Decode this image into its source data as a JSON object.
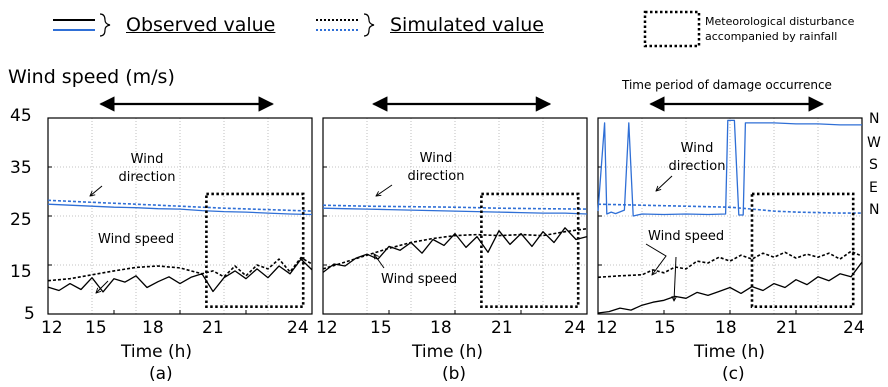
{
  "legend": {
    "observed_label": "Observed value",
    "simulated_label": "Simulated value",
    "disturbance_label_line1": "Meteorological disturbance",
    "disturbance_label_line2": "accompanied by rainfall"
  },
  "y_axis_label": "Wind speed (m/s)",
  "right_axis_labels": [
    "N",
    "W",
    "S",
    "E",
    "N"
  ],
  "colors": {
    "speed": "#000000",
    "direction": "#2f6fd6",
    "grid": "#b0b0b0"
  },
  "chart_data": [
    {
      "type": "line",
      "panel_label": "(a)",
      "xlabel": "Time (h)",
      "ylabel": "Wind speed (m/s)",
      "xlim": [
        12,
        24
      ],
      "ylim": [
        5,
        45
      ],
      "x_ticks": [
        12,
        15,
        18,
        21,
        24
      ],
      "y_ticks": [
        5,
        15,
        25,
        35,
        45
      ],
      "grid": true,
      "annotations": [
        "Wind direction",
        "Wind speed"
      ],
      "damage_period": [
        14.4,
        22.2
      ],
      "disturbance_box": {
        "x": [
          19.2,
          23.6
        ],
        "y": [
          6.5,
          29.5
        ]
      },
      "series": [
        {
          "role": "speed",
          "kind": "observed",
          "x": [
            12,
            12.5,
            13,
            13.5,
            14,
            14.5,
            15,
            15.5,
            16,
            16.5,
            17,
            17.5,
            18,
            18.5,
            19,
            19.5,
            20,
            20.5,
            21,
            21.5,
            22,
            22.5,
            23,
            23.5,
            24
          ],
          "y": [
            10.5,
            9.8,
            11.2,
            10,
            12.4,
            9.5,
            12.2,
            11.5,
            12.8,
            10.4,
            11.6,
            12.6,
            11.2,
            12.5,
            13.2,
            9.6,
            12.4,
            13.8,
            12.2,
            14.2,
            12.4,
            14.8,
            13.2,
            16.2,
            14
          ]
        },
        {
          "role": "speed",
          "kind": "simulated",
          "x": [
            12,
            13,
            14,
            15,
            16,
            17,
            18,
            19,
            19.5,
            20,
            20.5,
            21,
            21.5,
            22,
            22.5,
            23,
            23.5,
            24
          ],
          "y": [
            11.8,
            12.2,
            13,
            13.8,
            14.5,
            14.8,
            14.4,
            13.2,
            13.8,
            12.6,
            14.8,
            12.8,
            15,
            14.2,
            16.2,
            13.6,
            16.5,
            15.2
          ]
        },
        {
          "role": "direction",
          "kind": "observed",
          "x": [
            12,
            13,
            14,
            15,
            16,
            17,
            18,
            19,
            20,
            21,
            22,
            23,
            24
          ],
          "y": [
            27.4,
            27.2,
            27,
            26.8,
            26.7,
            26.5,
            26.4,
            26.1,
            25.9,
            25.8,
            25.6,
            25.4,
            25.3
          ]
        },
        {
          "role": "direction",
          "kind": "simulated",
          "x": [
            12,
            14,
            16,
            18,
            20,
            22,
            24
          ],
          "y": [
            28.2,
            27.8,
            27.4,
            27,
            26.6,
            26.3,
            26
          ]
        }
      ]
    },
    {
      "type": "line",
      "panel_label": "(b)",
      "xlabel": "Time (h)",
      "ylabel": "Wind speed (m/s)",
      "xlim": [
        12,
        24
      ],
      "ylim": [
        5,
        45
      ],
      "x_ticks": [
        12,
        15,
        18,
        21,
        24
      ],
      "y_ticks": [
        5,
        15,
        25,
        35,
        45
      ],
      "grid": true,
      "annotations": [
        "Wind direction",
        "Wind speed"
      ],
      "damage_period": [
        14.3,
        22.3
      ],
      "disturbance_box": {
        "x": [
          19.2,
          23.6
        ],
        "y": [
          6.5,
          29.5
        ]
      },
      "series": [
        {
          "role": "speed",
          "kind": "observed",
          "x": [
            12,
            12.5,
            13,
            13.5,
            14,
            14.5,
            15,
            15.5,
            16,
            16.5,
            17,
            17.5,
            18,
            18.5,
            19,
            19.5,
            20,
            20.5,
            21,
            21.5,
            22,
            22.5,
            23,
            23.5,
            24
          ],
          "y": [
            13.5,
            15.2,
            14.8,
            16.4,
            17.2,
            16.2,
            18.8,
            18,
            19.6,
            17.4,
            20.2,
            19,
            21.4,
            18.6,
            20.8,
            17.6,
            22,
            19.2,
            21.4,
            18.8,
            21.8,
            19.6,
            22.6,
            20.2,
            20.8
          ]
        },
        {
          "role": "speed",
          "kind": "simulated",
          "x": [
            12,
            13,
            14,
            15,
            16,
            17,
            18,
            19,
            20,
            21,
            22,
            23,
            24
          ],
          "y": [
            14.2,
            15.6,
            17,
            18.4,
            19.6,
            20.4,
            21,
            21.2,
            21,
            21.2,
            21,
            21.8,
            22.4
          ]
        },
        {
          "role": "direction",
          "kind": "observed",
          "x": [
            12,
            13,
            14,
            15,
            16,
            17,
            18,
            19,
            20,
            21,
            22,
            23,
            24
          ],
          "y": [
            26.6,
            26.5,
            26.4,
            26.3,
            26.2,
            26.1,
            26,
            25.9,
            25.8,
            25.7,
            25.6,
            25.6,
            25.4
          ]
        },
        {
          "role": "direction",
          "kind": "simulated",
          "x": [
            12,
            14,
            16,
            18,
            20,
            22,
            24
          ],
          "y": [
            27.2,
            27,
            26.9,
            26.8,
            26.6,
            26.5,
            26.4
          ]
        }
      ]
    },
    {
      "type": "line",
      "panel_label": "(c)",
      "title": "Time period of damage occurrence",
      "xlabel": "Time (h)",
      "ylabel": "Wind speed (m/s)",
      "xlim": [
        12,
        24
      ],
      "ylim": [
        5,
        45
      ],
      "x_ticks": [
        12,
        15,
        18,
        21,
        24
      ],
      "y_ticks": [
        5,
        15,
        25,
        35,
        45
      ],
      "grid": true,
      "annotations": [
        "Wind direction",
        "Wind speed"
      ],
      "damage_period": [
        14.4,
        22.2
      ],
      "disturbance_box": {
        "x": [
          19,
          23.6
        ],
        "y": [
          6.5,
          29.5
        ]
      },
      "series": [
        {
          "role": "speed",
          "kind": "observed",
          "x": [
            12,
            12.5,
            13,
            13.5,
            14,
            14.5,
            15,
            15.5,
            16,
            16.5,
            17,
            17.5,
            18,
            18.5,
            19,
            19.5,
            20,
            20.5,
            21,
            21.5,
            22,
            22.5,
            23,
            23.5,
            24
          ],
          "y": [
            5.2,
            5.5,
            6.2,
            5.8,
            6.8,
            7.4,
            7.8,
            8.6,
            8.2,
            9.4,
            8.8,
            9.6,
            10.4,
            9.2,
            10.6,
            9.8,
            11.2,
            10.4,
            12,
            11,
            12.6,
            11.8,
            13.2,
            12.6,
            15.6
          ]
        },
        {
          "role": "speed",
          "kind": "simulated",
          "x": [
            12,
            13,
            14,
            14.5,
            15,
            15.5,
            16,
            16.5,
            17,
            17.5,
            18,
            18.5,
            19,
            19.5,
            20,
            20.5,
            21,
            21.5,
            22,
            22.5,
            23,
            23.5,
            24
          ],
          "y": [
            12.5,
            12.8,
            13,
            14,
            13.4,
            14.6,
            14.2,
            15.8,
            15.4,
            16.6,
            15.8,
            17,
            16.2,
            17.4,
            16.6,
            17.6,
            16.4,
            17.2,
            16.6,
            17.4,
            16.2,
            17.8,
            16.8
          ]
        },
        {
          "role": "direction",
          "kind": "observed",
          "x": [
            12,
            12.3,
            12.4,
            12.6,
            12.8,
            13.2,
            13.4,
            13.6,
            14,
            15,
            16,
            17,
            17.8,
            17.9,
            18.2,
            18.4,
            18.6,
            18.7,
            19,
            20,
            21,
            22,
            23,
            24
          ],
          "y": [
            26,
            44,
            25.4,
            25.8,
            25.5,
            26.2,
            44,
            25,
            25.4,
            25.3,
            25.4,
            25.3,
            25.4,
            44.5,
            44.5,
            25.2,
            25.2,
            44,
            44,
            44,
            43.8,
            43.8,
            43.6,
            43.6
          ]
        },
        {
          "role": "direction",
          "kind": "simulated",
          "x": [
            12,
            14,
            16,
            18,
            19,
            20,
            21,
            22,
            23,
            24
          ],
          "y": [
            27.4,
            27.2,
            27,
            26.8,
            26.4,
            26,
            25.8,
            25.7,
            25.6,
            25.6
          ]
        }
      ]
    }
  ]
}
